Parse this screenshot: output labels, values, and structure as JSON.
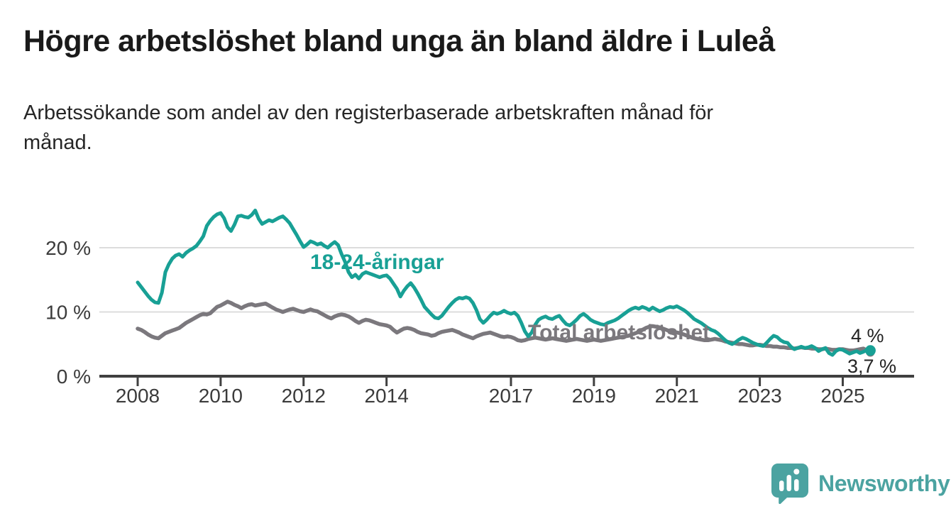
{
  "header": {
    "title": "Högre arbetslöshet bland unga än bland äldre i Luleå",
    "subtitle_lines": [
      "Arbetssökande som andel av den registerbaserade arbetskraften månad för",
      "månad."
    ]
  },
  "chart_data": {
    "type": "line",
    "unit": "%",
    "frequency": "monthly",
    "start": "2008-01",
    "end": "2025-09",
    "x_tick_years": [
      2008,
      2010,
      2012,
      2014,
      2017,
      2019,
      2021,
      2023,
      2025
    ],
    "y_ticks": [
      {
        "value": 0,
        "label": "0 %"
      },
      {
        "value": 10,
        "label": "10 %"
      },
      {
        "value": 20,
        "label": "20 %"
      }
    ],
    "ylim": [
      0,
      27
    ],
    "grid": "horizontal-only",
    "series": [
      {
        "name": "18-24-åringar",
        "color": "#18a095",
        "end_label": "4 %",
        "end_value": 4.0,
        "values": [
          14.6,
          13.9,
          13.2,
          12.5,
          11.9,
          11.5,
          11.4,
          13.0,
          16.2,
          17.4,
          18.3,
          18.8,
          19.0,
          18.6,
          19.2,
          19.6,
          19.9,
          20.3,
          21.0,
          21.8,
          23.4,
          24.2,
          24.8,
          25.2,
          25.4,
          24.6,
          23.2,
          22.6,
          23.6,
          24.9,
          25.0,
          24.8,
          24.7,
          25.1,
          25.8,
          24.5,
          23.7,
          24.0,
          24.3,
          24.1,
          24.4,
          24.7,
          24.9,
          24.4,
          23.8,
          22.9,
          22.0,
          21.0,
          20.1,
          20.5,
          21.0,
          20.8,
          20.5,
          20.7,
          20.3,
          20.0,
          20.5,
          20.9,
          20.4,
          19.0,
          17.8,
          16.2,
          15.4,
          15.8,
          15.2,
          15.9,
          16.2,
          16.0,
          15.8,
          15.6,
          15.4,
          15.6,
          15.7,
          15.2,
          14.4,
          13.6,
          12.4,
          13.3,
          14.0,
          14.5,
          13.8,
          12.9,
          11.9,
          10.8,
          10.2,
          9.6,
          9.1,
          9.0,
          9.4,
          10.1,
          10.8,
          11.4,
          11.9,
          12.2,
          12.1,
          12.3,
          12.1,
          11.4,
          10.3,
          8.9,
          8.3,
          8.8,
          9.4,
          9.9,
          9.7,
          9.9,
          10.2,
          9.9,
          9.7,
          9.9,
          9.4,
          8.3,
          7.0,
          6.2,
          6.8,
          8.0,
          8.8,
          9.1,
          9.3,
          9.0,
          8.9,
          9.2,
          9.4,
          8.7,
          8.1,
          7.9,
          8.3,
          8.8,
          9.4,
          9.7,
          9.3,
          8.8,
          8.5,
          8.3,
          8.1,
          8.0,
          8.3,
          8.5,
          8.7,
          9.0,
          9.4,
          9.8,
          10.2,
          10.5,
          10.7,
          10.5,
          10.8,
          10.6,
          10.3,
          10.7,
          10.4,
          10.1,
          10.3,
          10.6,
          10.8,
          10.7,
          10.9,
          10.6,
          10.3,
          9.9,
          9.4,
          8.9,
          8.6,
          8.3,
          7.9,
          7.5,
          7.2,
          7.0,
          6.6,
          6.1,
          5.6,
          5.2,
          5.0,
          5.3,
          5.7,
          6.0,
          5.8,
          5.5,
          5.2,
          5.0,
          4.8,
          4.7,
          5.2,
          5.8,
          6.3,
          6.1,
          5.6,
          5.3,
          5.2,
          4.6,
          4.2,
          4.4,
          4.6,
          4.4,
          4.5,
          4.7,
          4.4,
          3.9,
          4.2,
          4.4,
          3.6,
          3.3,
          3.9,
          4.2,
          4.1,
          3.8,
          3.5,
          3.7,
          3.9,
          3.6,
          3.8,
          4.1,
          4.0
        ]
      },
      {
        "name": "Total arbetslöshet",
        "color": "#7b787d",
        "end_label": "3,7 %",
        "end_value": 3.7,
        "values": [
          7.4,
          7.2,
          6.9,
          6.5,
          6.2,
          6.0,
          5.9,
          6.3,
          6.7,
          6.9,
          7.1,
          7.3,
          7.5,
          7.9,
          8.3,
          8.6,
          8.9,
          9.2,
          9.5,
          9.7,
          9.6,
          9.8,
          10.3,
          10.8,
          11.0,
          11.3,
          11.6,
          11.4,
          11.1,
          10.9,
          10.6,
          10.9,
          11.1,
          11.2,
          11.0,
          11.1,
          11.2,
          11.3,
          11.0,
          10.7,
          10.4,
          10.2,
          10.0,
          10.2,
          10.4,
          10.5,
          10.3,
          10.1,
          10.0,
          10.2,
          10.4,
          10.2,
          10.1,
          9.8,
          9.5,
          9.2,
          9.0,
          9.3,
          9.5,
          9.6,
          9.5,
          9.3,
          9.0,
          8.6,
          8.3,
          8.6,
          8.8,
          8.7,
          8.5,
          8.3,
          8.1,
          8.0,
          7.9,
          7.7,
          7.2,
          6.8,
          7.1,
          7.4,
          7.5,
          7.4,
          7.2,
          6.9,
          6.7,
          6.6,
          6.5,
          6.3,
          6.4,
          6.7,
          6.9,
          7.0,
          7.1,
          7.2,
          7.0,
          6.8,
          6.5,
          6.3,
          6.1,
          5.9,
          6.2,
          6.4,
          6.6,
          6.7,
          6.8,
          6.6,
          6.4,
          6.2,
          6.1,
          6.2,
          6.1,
          5.9,
          5.6,
          5.5,
          5.6,
          5.8,
          5.9,
          6.0,
          5.9,
          5.8,
          5.7,
          5.8,
          5.9,
          5.8,
          5.7,
          5.6,
          5.5,
          5.6,
          5.7,
          5.8,
          5.7,
          5.6,
          5.5,
          5.6,
          5.7,
          5.6,
          5.5,
          5.6,
          5.7,
          5.8,
          5.9,
          6.0,
          6.1,
          6.2,
          6.3,
          6.5,
          6.7,
          6.9,
          7.2,
          7.5,
          7.7,
          7.8,
          7.7,
          7.6,
          7.4,
          7.2,
          7.0,
          6.9,
          6.8,
          6.7,
          6.5,
          6.3,
          6.1,
          5.9,
          5.8,
          5.7,
          5.6,
          5.6,
          5.7,
          5.8,
          5.7,
          5.6,
          5.4,
          5.3,
          5.2,
          5.1,
          5.0,
          5.0,
          4.9,
          4.8,
          4.8,
          4.9,
          4.9,
          4.8,
          4.7,
          4.7,
          4.6,
          4.6,
          4.5,
          4.5,
          4.4,
          4.4,
          4.3,
          4.4,
          4.5,
          4.4,
          4.4,
          4.3,
          4.3,
          4.2,
          4.2,
          4.3,
          4.2,
          4.1,
          4.1,
          4.2,
          4.2,
          4.1,
          4.0,
          4.0,
          4.1,
          4.2,
          4.3,
          4.0,
          3.7
        ]
      }
    ],
    "styles": {
      "gridline_color": "#dcdcdc",
      "axis_color": "#404040",
      "tick_label_color": "#3b3b3b"
    }
  },
  "branding": {
    "logo_text": "Newsworthy",
    "brand_color": "#4ba3a1"
  }
}
